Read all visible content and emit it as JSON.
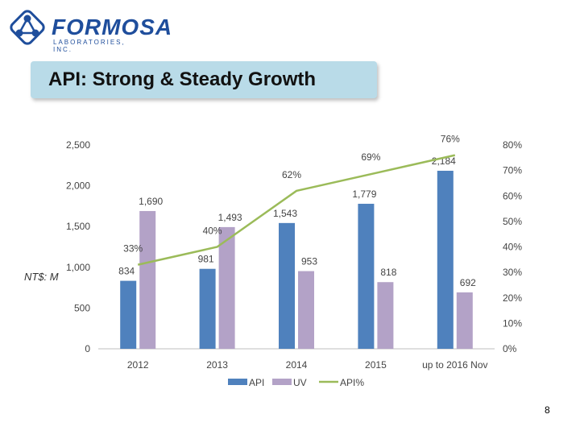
{
  "header": {
    "logo_name": "FORMOSA",
    "logo_tagline": "LABORATORIES, INC.",
    "title": "API: Strong & Steady Growth"
  },
  "unit_label": "NT$: M",
  "page_number": "8",
  "colors": {
    "api": "#4f81bd",
    "uv": "#b3a2c7",
    "api_pct": "#9bbb59",
    "title_bg": "#b9dbe8",
    "logo": "#1f4e9c"
  },
  "chart_data": {
    "type": "bar",
    "categories": [
      "2012",
      "2013",
      "2014",
      "2015",
      "up to 2016 Nov"
    ],
    "series": [
      {
        "name": "API",
        "values": [
          834,
          981,
          1543,
          1779,
          2184
        ],
        "labels": [
          "834",
          "981",
          "1,543",
          "1,779",
          "2,184"
        ]
      },
      {
        "name": "UV",
        "values": [
          1690,
          1493,
          953,
          818,
          692
        ],
        "labels": [
          "1,690",
          "1,493",
          "953",
          "818",
          "692"
        ]
      },
      {
        "name": "API%",
        "type": "line",
        "axis": "right",
        "values": [
          33,
          40,
          62,
          69,
          76
        ],
        "labels": [
          "33%",
          "40%",
          "62%",
          "69%",
          "76%"
        ]
      }
    ],
    "y_left": {
      "range": [
        0,
        2500
      ],
      "ticks": [
        "0",
        "500",
        "1,000",
        "1,500",
        "2,000",
        "2,500"
      ]
    },
    "y_right": {
      "range": [
        0,
        80
      ],
      "ticks": [
        "0%",
        "10%",
        "20%",
        "30%",
        "40%",
        "50%",
        "60%",
        "70%",
        "80%"
      ]
    },
    "grid": false,
    "legend": {
      "position": "bottom",
      "entries": [
        "API",
        "UV",
        "API%"
      ]
    }
  }
}
